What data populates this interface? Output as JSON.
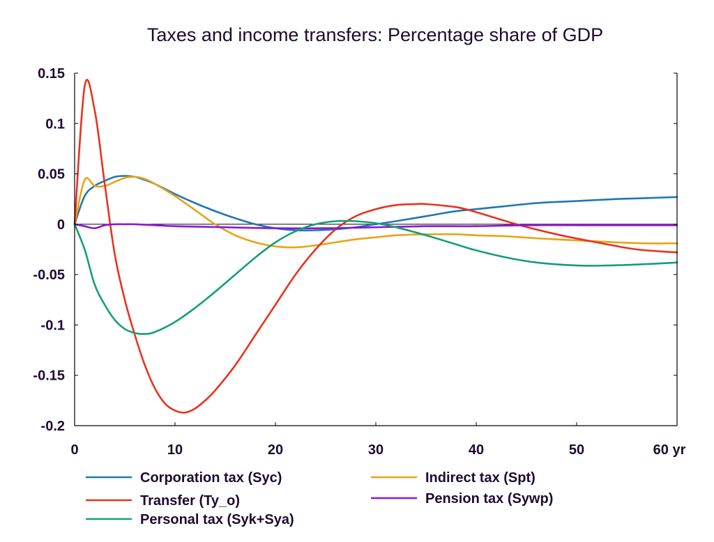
{
  "chart_data": {
    "type": "line",
    "title": "Taxes and income transfers: Percentage share of GDP",
    "xlabel": "",
    "ylabel": "",
    "xlim": [
      0,
      60
    ],
    "ylim": [
      -0.2,
      0.15
    ],
    "x_ticks": [
      0,
      10,
      20,
      30,
      40,
      50,
      60
    ],
    "x_tick_labels": [
      "0",
      "10",
      "20",
      "30",
      "40",
      "50",
      "60 yr"
    ],
    "y_ticks": [
      0.15,
      0.1,
      0.05,
      0,
      -0.05,
      -0.1,
      -0.15,
      -0.2
    ],
    "y_tick_labels": [
      "0.15",
      "0.1",
      "0.05",
      "0",
      "-0.05",
      "-0.1",
      "-0.15",
      "-0.2"
    ],
    "grid": false,
    "legend_position": "bottom",
    "series": [
      {
        "name": "Corporation tax (Syc)",
        "color": "#1f77b4",
        "x": [
          0,
          1,
          2,
          3,
          4,
          5,
          6,
          7,
          8,
          10,
          12,
          14,
          16,
          18,
          20,
          22,
          24,
          26,
          28,
          30,
          32,
          35,
          38,
          40,
          43,
          46,
          50,
          54,
          57,
          60
        ],
        "y": [
          0,
          0.028,
          0.038,
          0.043,
          0.047,
          0.048,
          0.047,
          0.044,
          0.04,
          0.03,
          0.021,
          0.013,
          0.006,
          0.0,
          -0.004,
          -0.006,
          -0.006,
          -0.005,
          -0.003,
          0.0,
          0.003,
          0.008,
          0.013,
          0.015,
          0.018,
          0.021,
          0.023,
          0.025,
          0.026,
          0.027
        ]
      },
      {
        "name": "Indirect tax (Spt)",
        "color": "#e8a317",
        "x": [
          0,
          1,
          2,
          3,
          4,
          5,
          6,
          7,
          8,
          10,
          12,
          14,
          16,
          18,
          20,
          22,
          24,
          26,
          28,
          30,
          32,
          35,
          38,
          40,
          43,
          46,
          50,
          54,
          57,
          60
        ],
        "y": [
          0,
          0.044,
          0.038,
          0.038,
          0.042,
          0.046,
          0.047,
          0.045,
          0.04,
          0.028,
          0.014,
          0.0,
          -0.011,
          -0.018,
          -0.022,
          -0.023,
          -0.021,
          -0.018,
          -0.015,
          -0.013,
          -0.011,
          -0.01,
          -0.01,
          -0.011,
          -0.012,
          -0.014,
          -0.016,
          -0.018,
          -0.019,
          -0.019
        ]
      },
      {
        "name": "Transfer (Ty_o)",
        "color": "#e8321e",
        "x": [
          0,
          1,
          2,
          3,
          4,
          5,
          6,
          7,
          8,
          9,
          10,
          11,
          12,
          13,
          14,
          16,
          18,
          20,
          22,
          24,
          26,
          28,
          30,
          32,
          34,
          35,
          38,
          40,
          44,
          48,
          52,
          56,
          60
        ],
        "y": [
          0,
          0.137,
          0.113,
          0.04,
          -0.03,
          -0.075,
          -0.11,
          -0.14,
          -0.163,
          -0.178,
          -0.185,
          -0.187,
          -0.183,
          -0.175,
          -0.165,
          -0.14,
          -0.11,
          -0.08,
          -0.05,
          -0.025,
          -0.005,
          0.008,
          0.015,
          0.019,
          0.02,
          0.02,
          0.017,
          0.012,
          0.0,
          -0.01,
          -0.018,
          -0.025,
          -0.028
        ]
      },
      {
        "name": "Pension tax (Sywp)",
        "color": "#9014d8",
        "x": [
          0,
          1,
          2,
          3,
          4,
          5,
          6,
          8,
          10,
          15,
          20,
          25,
          30,
          35,
          40,
          45,
          50,
          55,
          60
        ],
        "y": [
          0,
          -0.002,
          -0.004,
          -0.001,
          0.0,
          0.0,
          0.0,
          -0.001,
          -0.002,
          -0.003,
          -0.004,
          -0.004,
          -0.003,
          -0.002,
          -0.002,
          -0.001,
          -0.001,
          -0.001,
          -0.001
        ]
      },
      {
        "name": "Personal tax (Syk+Sya)",
        "color": "#149d7a",
        "x": [
          0,
          1,
          2,
          3,
          4,
          5,
          6,
          7,
          8,
          10,
          12,
          14,
          16,
          18,
          20,
          22,
          24,
          26,
          28,
          30,
          32,
          35,
          38,
          40,
          43,
          46,
          50,
          53,
          56,
          60
        ],
        "y": [
          0,
          -0.025,
          -0.06,
          -0.08,
          -0.095,
          -0.104,
          -0.108,
          -0.109,
          -0.107,
          -0.097,
          -0.083,
          -0.067,
          -0.05,
          -0.033,
          -0.018,
          -0.007,
          0.0,
          0.003,
          0.003,
          0.001,
          -0.003,
          -0.011,
          -0.02,
          -0.026,
          -0.033,
          -0.038,
          -0.041,
          -0.041,
          -0.04,
          -0.038
        ]
      }
    ]
  }
}
